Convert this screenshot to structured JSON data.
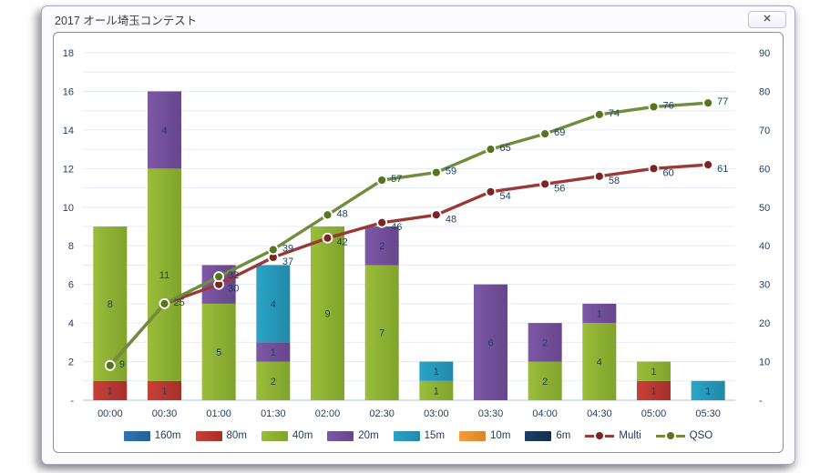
{
  "window": {
    "title": "2017 オール埼玉コンテスト",
    "close_icon": "✕"
  },
  "chart_data": {
    "type": "combo-stacked-bar-line",
    "title": "2017 オール埼玉コンテスト",
    "categories": [
      "00:00",
      "00:30",
      "01:00",
      "01:30",
      "02:00",
      "02:30",
      "03:00",
      "03:30",
      "04:00",
      "04:30",
      "05:00",
      "05:30"
    ],
    "bar_series": [
      {
        "name": "160m",
        "color": "#2e73b5",
        "color_dark": "#265f96",
        "values": [
          0,
          0,
          0,
          0,
          0,
          0,
          0,
          0,
          0,
          0,
          0,
          0
        ]
      },
      {
        "name": "80m",
        "color": "#c94036",
        "color_dark": "#a5302a",
        "values": [
          1,
          1,
          0,
          0,
          0,
          0,
          0,
          0,
          0,
          0,
          1,
          0
        ]
      },
      {
        "name": "40m",
        "color": "#9bbd3a",
        "color_dark": "#7fa32c",
        "values": [
          8,
          11,
          5,
          2,
          9,
          7,
          1,
          0,
          2,
          4,
          1,
          0
        ]
      },
      {
        "name": "20m",
        "color": "#7d58a6",
        "color_dark": "#66468c",
        "values": [
          0,
          4,
          2,
          1,
          0,
          2,
          0,
          6,
          2,
          1,
          0,
          0
        ]
      },
      {
        "name": "15m",
        "color": "#2ba4c6",
        "color_dark": "#2289a8",
        "values": [
          0,
          0,
          0,
          4,
          0,
          0,
          1,
          0,
          0,
          0,
          0,
          1
        ]
      },
      {
        "name": "10m",
        "color": "#f59c3c",
        "color_dark": "#d88430",
        "values": [
          0,
          0,
          0,
          0,
          0,
          0,
          0,
          0,
          0,
          0,
          0,
          0
        ]
      },
      {
        "name": "6m",
        "color": "#1c3e66",
        "color_dark": "#152f4e",
        "values": [
          0,
          0,
          0,
          0,
          0,
          0,
          0,
          0,
          0,
          0,
          0,
          0
        ]
      }
    ],
    "line_series": [
      {
        "name": "Multi",
        "color": "#9b3937",
        "marker_color": "#7c2422",
        "values": [
          9,
          25,
          30,
          37,
          42,
          46,
          48,
          54,
          56,
          58,
          60,
          61
        ],
        "labels": [
          "",
          "",
          "30",
          "37",
          "42",
          "46",
          "48",
          "54",
          "56",
          "58",
          "60",
          "61"
        ]
      },
      {
        "name": "QSO",
        "color": "#708c3d",
        "marker_color": "#55761f",
        "values": [
          9,
          25,
          32,
          39,
          48,
          57,
          59,
          65,
          69,
          74,
          76,
          77
        ],
        "labels": [
          "9",
          "25",
          "32",
          "39",
          "48",
          "57",
          "59",
          "65",
          "69",
          "74",
          "76",
          "77"
        ]
      }
    ],
    "axes": {
      "left": {
        "min": 0,
        "max": 18,
        "tick_step": 2,
        "grid_step": 1,
        "zero_label": "-"
      },
      "right": {
        "min": 0,
        "max": 90,
        "tick_step": 10,
        "zero_label": "-"
      }
    },
    "grid": true,
    "legend_position": "bottom",
    "colors": {
      "axis_text": "#1f4066",
      "gridline": "#e4ecf6",
      "baseline": "#a9c3e1",
      "data_label": "#1f4066"
    }
  }
}
